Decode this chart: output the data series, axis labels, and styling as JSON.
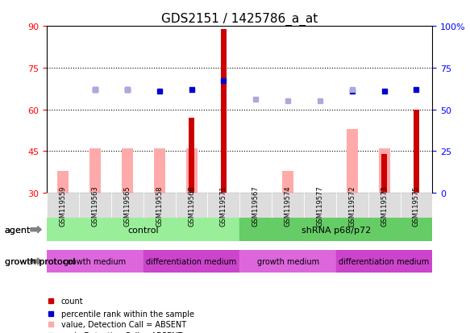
{
  "title": "GDS2151 / 1425786_a_at",
  "samples": [
    "GSM119559",
    "GSM119563",
    "GSM119565",
    "GSM119558",
    "GSM119568",
    "GSM119571",
    "GSM119567",
    "GSM119574",
    "GSM119577",
    "GSM119572",
    "GSM119573",
    "GSM119575"
  ],
  "bar_values_dark": [
    30,
    30,
    30,
    30,
    57,
    89,
    30,
    30,
    30,
    30,
    44,
    60
  ],
  "bar_values_light": [
    38,
    46,
    46,
    46,
    46,
    0,
    0,
    38,
    0,
    53,
    46,
    0
  ],
  "percentile_rank": [
    null,
    62,
    62,
    61,
    62,
    67,
    null,
    null,
    null,
    61,
    61,
    62
  ],
  "rank_absent": [
    null,
    62,
    62,
    null,
    null,
    null,
    56,
    55,
    55,
    62,
    null,
    null
  ],
  "ylim_left": [
    30,
    90
  ],
  "ylim_right": [
    0,
    100
  ],
  "yticks_left": [
    30,
    45,
    60,
    75,
    90
  ],
  "yticks_right": [
    0,
    25,
    50,
    75,
    100
  ],
  "ytick_labels_left": [
    "30",
    "45",
    "60",
    "75",
    "90"
  ],
  "ytick_labels_right": [
    "0",
    "25",
    "50",
    "75",
    "100%"
  ],
  "bar_color_dark": "#cc0000",
  "bar_color_light": "#ffaaaa",
  "dot_color_dark": "#0000cc",
  "dot_color_light": "#aaaadd",
  "agent_groups": [
    {
      "label": "control",
      "start": 0,
      "end": 6,
      "color": "#99ee99"
    },
    {
      "label": "shRNA p68/p72",
      "start": 6,
      "end": 12,
      "color": "#66cc66"
    }
  ],
  "growth_groups": [
    {
      "label": "growth medium",
      "start": 0,
      "end": 3,
      "color": "#dd66dd"
    },
    {
      "label": "differentiation medium",
      "start": 3,
      "end": 6,
      "color": "#cc44cc"
    },
    {
      "label": "growth medium",
      "start": 6,
      "end": 9,
      "color": "#dd66dd"
    },
    {
      "label": "differentiation medium",
      "start": 9,
      "end": 12,
      "color": "#cc44cc"
    }
  ],
  "legend_items": [
    {
      "label": "count",
      "color": "#cc0000",
      "marker": "s"
    },
    {
      "label": "percentile rank within the sample",
      "color": "#0000cc",
      "marker": "s"
    },
    {
      "label": "value, Detection Call = ABSENT",
      "color": "#ffaaaa",
      "marker": "s"
    },
    {
      "label": "rank, Detection Call = ABSENT",
      "color": "#aaaadd",
      "marker": "s"
    }
  ],
  "hline_style": "dotted",
  "hline_color": "#000000",
  "hlines": [
    45,
    60,
    75
  ],
  "background_color": "#ffffff",
  "plot_bg": "#ffffff"
}
